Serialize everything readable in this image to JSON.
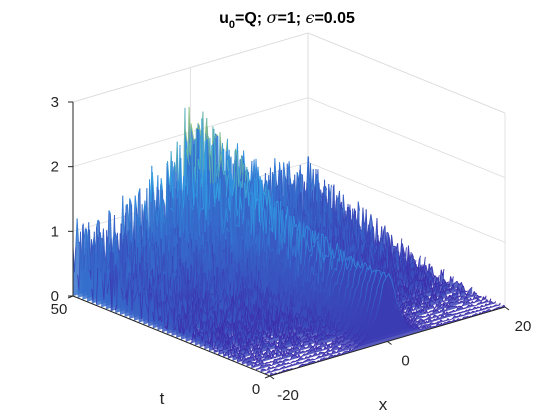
{
  "colors": {
    "low": "#3e26a8",
    "mid": "#2fa0e6",
    "high": "#c9d53b",
    "peak": "#eedb2c",
    "grid": "#dcdcdc",
    "axis": "#262626",
    "title": "#000000"
  },
  "chart_data": {
    "type": "surface",
    "title": {
      "u_base": "u",
      "u_sub": "0",
      "eq_q": "=Q; ",
      "sigma_sym": "σ",
      "sigma_eq": "=1; ",
      "eps_sym": "ϵ",
      "eps_eq": "=0.05"
    },
    "xlabel": "x",
    "ylabel": "t",
    "zlabel": "",
    "xlim": [
      -20,
      20
    ],
    "ylim": [
      0,
      50
    ],
    "zlim": [
      0,
      3
    ],
    "x_ticks": [
      -20,
      0,
      20
    ],
    "y_ticks": [
      0,
      50
    ],
    "z_ticks": [
      0,
      1,
      2,
      3
    ],
    "grid": true,
    "colormap": "parula",
    "noise_eps": 0.05,
    "description_of_data": {
      "solitary_wave_peak_at_t0": 1.0,
      "solitary_wave_width": 1.3,
      "max_observed_spike": 3.1
    }
  }
}
